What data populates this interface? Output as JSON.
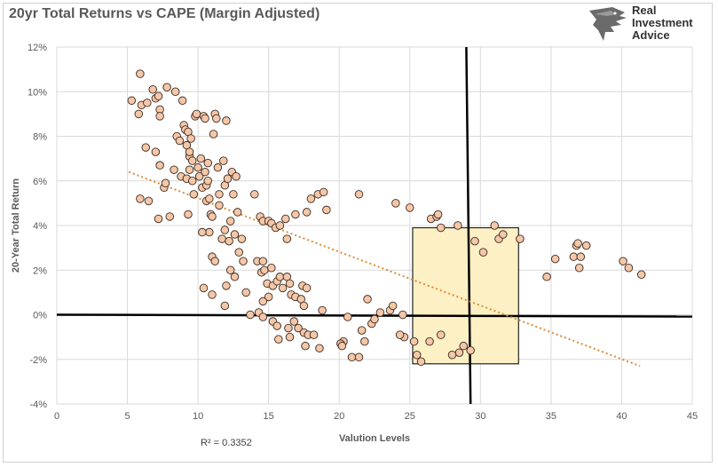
{
  "title": "20yr Total Returns vs CAPE (Margin Adjusted)",
  "brand": {
    "line1": "Real",
    "line2": "Investment",
    "line3": "Advice"
  },
  "colors": {
    "point_fill": "#f4c7a8",
    "point_stroke": "#3a2a20",
    "trend": "#e08a35",
    "box_fill": "#fdf0c4",
    "box_stroke": "#222222",
    "grid": "#d9d9d9"
  },
  "chart_data": {
    "type": "scatter",
    "xlabel": "Valution Levels",
    "ylabel": "20-Year Total Return",
    "xlim": [
      0,
      45
    ],
    "ylim": [
      -0.04,
      0.12
    ],
    "x_ticks": [
      0,
      5,
      10,
      15,
      20,
      25,
      30,
      35,
      40,
      45
    ],
    "y_ticks": [
      -0.04,
      -0.02,
      0,
      0.02,
      0.04,
      0.06,
      0.08,
      0.1,
      0.12
    ],
    "x_tick_labels": [
      "0",
      "5",
      "10",
      "15",
      "20",
      "25",
      "30",
      "35",
      "40",
      "45"
    ],
    "y_tick_labels": [
      "-4%",
      "-2%",
      "0%",
      "2%",
      "4%",
      "6%",
      "8%",
      "10%",
      "12%"
    ],
    "grid": "both",
    "r_squared_label": "R² = 0.3352",
    "trendline": {
      "style": "dotted",
      "x": [
        5.1,
        41.3
      ],
      "y": [
        0.064,
        -0.023
      ]
    },
    "highlight_box": {
      "x": [
        25.2,
        32.7
      ],
      "y": [
        -0.022,
        0.039
      ]
    },
    "reference_lines": {
      "horizontal_y": 0.0,
      "horizontal_x_range": [
        0,
        45
      ],
      "vertical_x": [
        29.0,
        29.3
      ],
      "vertical_y_range": [
        -0.04,
        0.12
      ]
    },
    "points": [
      [
        5.3,
        0.096
      ],
      [
        5.8,
        0.09
      ],
      [
        5.9,
        0.108
      ],
      [
        6.0,
        0.094
      ],
      [
        6.4,
        0.095
      ],
      [
        6.8,
        0.101
      ],
      [
        7.0,
        0.097
      ],
      [
        7.2,
        0.098
      ],
      [
        7.3,
        0.092
      ],
      [
        7.3,
        0.089
      ],
      [
        7.8,
        0.102
      ],
      [
        8.4,
        0.1
      ],
      [
        8.9,
        0.096
      ],
      [
        5.9,
        0.052
      ],
      [
        6.3,
        0.075
      ],
      [
        6.5,
        0.051
      ],
      [
        7.0,
        0.073
      ],
      [
        7.3,
        0.067
      ],
      [
        7.6,
        0.057
      ],
      [
        7.7,
        0.059
      ],
      [
        7.2,
        0.043
      ],
      [
        8.0,
        0.044
      ],
      [
        8.3,
        0.065
      ],
      [
        8.5,
        0.08
      ],
      [
        8.7,
        0.078
      ],
      [
        8.8,
        0.062
      ],
      [
        9.0,
        0.085
      ],
      [
        9.1,
        0.083
      ],
      [
        9.2,
        0.076
      ],
      [
        9.3,
        0.082
      ],
      [
        9.4,
        0.071
      ],
      [
        9.4,
        0.073
      ],
      [
        9.5,
        0.079
      ],
      [
        9.6,
        0.069
      ],
      [
        9.2,
        0.061
      ],
      [
        9.4,
        0.065
      ],
      [
        9.6,
        0.06
      ],
      [
        9.7,
        0.054
      ],
      [
        9.3,
        0.045
      ],
      [
        9.8,
        0.089
      ],
      [
        9.9,
        0.09
      ],
      [
        10.0,
        0.066
      ],
      [
        10.1,
        0.062
      ],
      [
        10.2,
        0.07
      ],
      [
        10.3,
        0.057
      ],
      [
        10.4,
        0.089
      ],
      [
        10.5,
        0.088
      ],
      [
        10.5,
        0.064
      ],
      [
        10.6,
        0.058
      ],
      [
        10.6,
        0.051
      ],
      [
        10.7,
        0.06
      ],
      [
        10.7,
        0.068
      ],
      [
        10.8,
        0.052
      ],
      [
        10.9,
        0.045
      ],
      [
        10.8,
        0.037
      ],
      [
        11.1,
        0.081
      ],
      [
        11.2,
        0.09
      ],
      [
        11.3,
        0.088
      ],
      [
        11.4,
        0.066
      ],
      [
        11.5,
        0.054
      ],
      [
        11.5,
        0.049
      ],
      [
        11.0,
        0.044
      ],
      [
        10.3,
        0.037
      ],
      [
        11.8,
        0.069
      ],
      [
        11.9,
        0.058
      ],
      [
        12.0,
        0.087
      ],
      [
        12.1,
        0.061
      ],
      [
        12.4,
        0.064
      ],
      [
        12.5,
        0.054
      ],
      [
        12.7,
        0.062
      ],
      [
        12.8,
        0.046
      ],
      [
        12.3,
        0.042
      ],
      [
        12.6,
        0.036
      ],
      [
        12.9,
        0.028
      ],
      [
        13.1,
        0.034
      ],
      [
        11.7,
        0.034
      ],
      [
        11.9,
        0.038
      ],
      [
        12.2,
        0.033
      ],
      [
        12.0,
        0.013
      ],
      [
        12.3,
        0.02
      ],
      [
        12.6,
        0.017
      ],
      [
        13.2,
        0.024
      ],
      [
        11.0,
        0.026
      ],
      [
        11.2,
        0.024
      ],
      [
        10.4,
        0.012
      ],
      [
        11.0,
        0.009
      ],
      [
        11.9,
        0.004
      ],
      [
        13.4,
        0.01
      ],
      [
        14.0,
        0.054
      ],
      [
        14.4,
        0.044
      ],
      [
        14.6,
        0.042
      ],
      [
        15.0,
        0.042
      ],
      [
        15.2,
        0.041
      ],
      [
        15.5,
        0.039
      ],
      [
        15.8,
        0.04
      ],
      [
        16.2,
        0.043
      ],
      [
        16.3,
        0.034
      ],
      [
        16.9,
        0.045
      ],
      [
        17.7,
        0.046
      ],
      [
        18.0,
        0.052
      ],
      [
        18.5,
        0.054
      ],
      [
        18.9,
        0.055
      ],
      [
        19.1,
        0.047
      ],
      [
        21.4,
        0.054
      ],
      [
        24.0,
        0.05
      ],
      [
        25.0,
        0.048
      ],
      [
        26.5,
        0.043
      ],
      [
        26.9,
        0.044
      ],
      [
        27.0,
        0.045
      ],
      [
        28.4,
        0.04
      ],
      [
        27.2,
        0.039
      ],
      [
        14.2,
        0.024
      ],
      [
        14.5,
        0.019
      ],
      [
        14.6,
        0.024
      ],
      [
        14.7,
        0.02
      ],
      [
        14.9,
        0.014
      ],
      [
        15.2,
        0.021
      ],
      [
        15.3,
        0.013
      ],
      [
        15.6,
        0.015
      ],
      [
        15.8,
        0.017
      ],
      [
        16.0,
        0.012
      ],
      [
        16.3,
        0.017
      ],
      [
        16.5,
        0.014
      ],
      [
        17.4,
        0.013
      ],
      [
        17.7,
        0.012
      ],
      [
        16.6,
        0.009
      ],
      [
        16.9,
        0.008
      ],
      [
        17.3,
        0.007
      ],
      [
        15.0,
        0.008
      ],
      [
        14.6,
        0.006
      ],
      [
        13.7,
        0.0
      ],
      [
        14.3,
        0.001
      ],
      [
        14.6,
        -0.001
      ],
      [
        15.3,
        -0.003
      ],
      [
        15.6,
        -0.005
      ],
      [
        16.4,
        -0.006
      ],
      [
        16.8,
        -0.003
      ],
      [
        17.1,
        -0.006
      ],
      [
        17.5,
        -0.008
      ],
      [
        17.8,
        -0.009
      ],
      [
        17.6,
        -0.014
      ],
      [
        15.7,
        -0.011
      ],
      [
        16.5,
        -0.01
      ],
      [
        18.2,
        -0.009
      ],
      [
        18.8,
        0.002
      ],
      [
        20.3,
        -0.012
      ],
      [
        20.6,
        -0.001
      ],
      [
        20.9,
        -0.019
      ],
      [
        21.4,
        -0.019
      ],
      [
        21.6,
        -0.007
      ],
      [
        21.8,
        -0.012
      ],
      [
        22.0,
        0.007
      ],
      [
        22.3,
        -0.004
      ],
      [
        22.5,
        -0.002
      ],
      [
        22.9,
        0.001
      ],
      [
        23.6,
        0.002
      ],
      [
        23.8,
        0.004
      ],
      [
        24.5,
        0.0
      ],
      [
        24.6,
        -0.01
      ],
      [
        25.3,
        -0.012
      ],
      [
        25.5,
        -0.018
      ],
      [
        25.8,
        -0.021
      ],
      [
        26.4,
        -0.012
      ],
      [
        27.2,
        -0.009
      ],
      [
        28.0,
        -0.018
      ],
      [
        28.5,
        -0.017
      ],
      [
        28.8,
        -0.014
      ],
      [
        29.3,
        -0.016
      ],
      [
        29.6,
        0.033
      ],
      [
        30.2,
        0.028
      ],
      [
        31.0,
        0.04
      ],
      [
        31.3,
        0.034
      ],
      [
        31.6,
        0.036
      ],
      [
        32.8,
        0.034
      ],
      [
        34.7,
        0.017
      ],
      [
        35.3,
        0.025
      ],
      [
        36.6,
        0.026
      ],
      [
        36.8,
        0.031
      ],
      [
        36.9,
        0.032
      ],
      [
        37.0,
        0.021
      ],
      [
        37.1,
        0.026
      ],
      [
        37.5,
        0.031
      ],
      [
        40.1,
        0.024
      ],
      [
        40.5,
        0.021
      ],
      [
        41.4,
        0.018
      ],
      [
        20.1,
        -0.013
      ],
      [
        20.2,
        -0.014
      ],
      [
        24.3,
        -0.009
      ],
      [
        18.6,
        -0.015
      ],
      [
        17.5,
        0.004
      ]
    ]
  }
}
